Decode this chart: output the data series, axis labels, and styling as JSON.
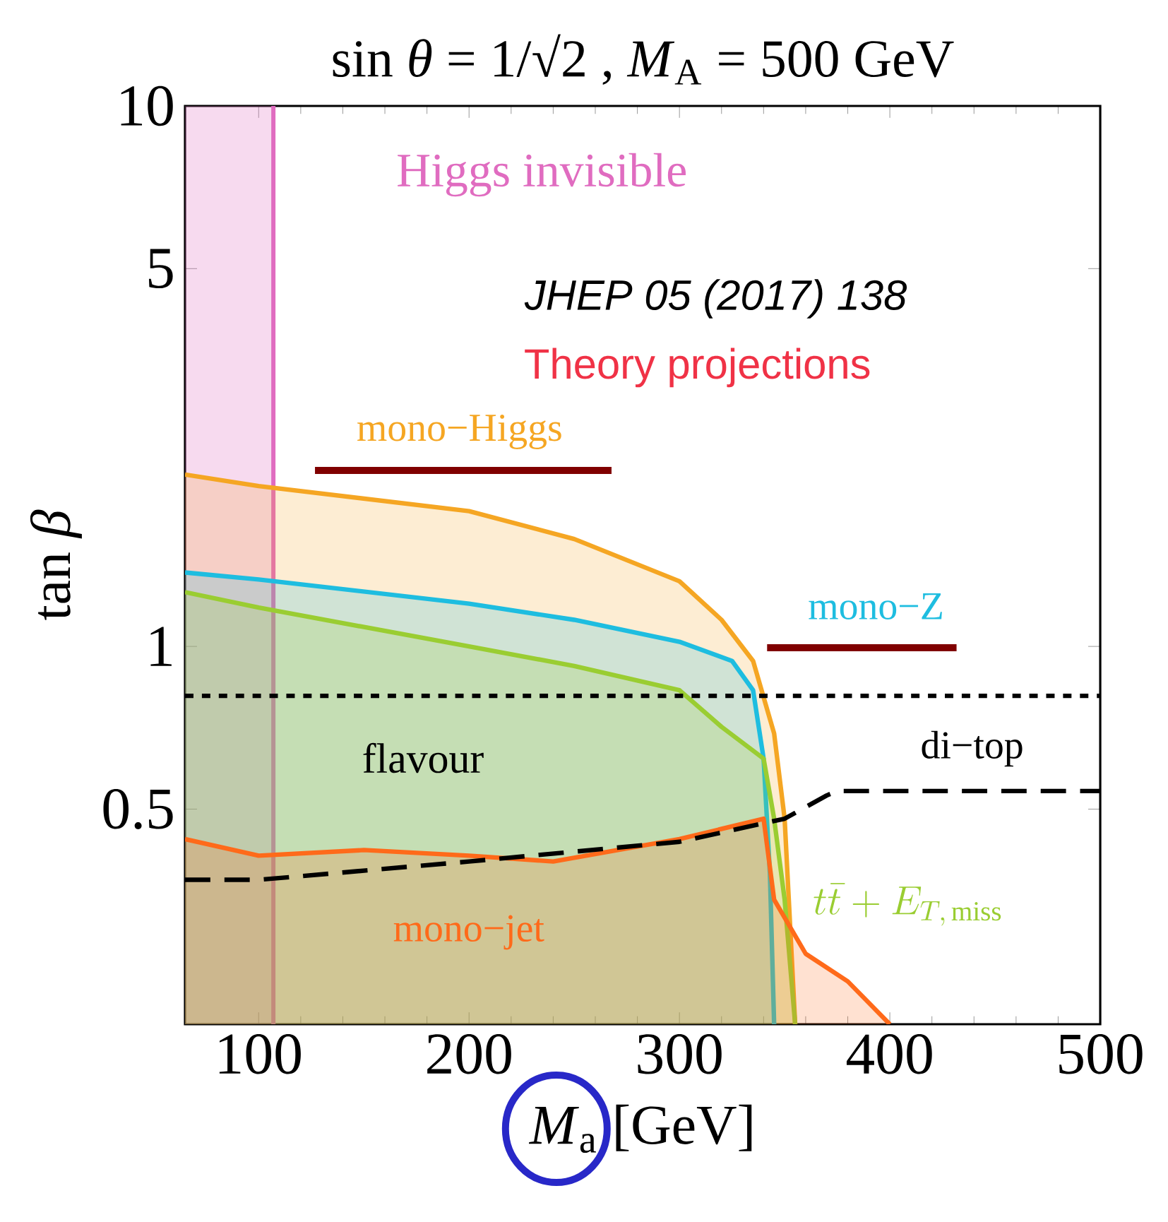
{
  "chart_data": {
    "type": "area",
    "title": "sin *θ* = 1/√2 , *M*$_{A}$ = 500 GeV",
    "xlabel": "*M*$_{a}$ [GeV]",
    "ylabel": "tan *β*",
    "log": "y",
    "grid": false,
    "xlim": [
      65,
      500
    ],
    "xticks": [
      100,
      200,
      300,
      400,
      500
    ],
    "ylim": [
      0.2,
      10
    ],
    "yticks": [
      0.5,
      1,
      5,
      10
    ],
    "series": [
      {
        "name": "mono−Higgs",
        "color": "#f5a623",
        "x": [
          65,
          100,
          200,
          250,
          300,
          320,
          335,
          345,
          350,
          355
        ],
        "values": [
          2.08,
          1.98,
          1.78,
          1.58,
          1.32,
          1.12,
          0.94,
          0.69,
          0.48,
          0.2
        ]
      },
      {
        "name": "mono−Z",
        "color": "#1ebde0",
        "x": [
          65,
          100,
          200,
          250,
          300,
          325,
          335,
          340,
          343,
          345
        ],
        "values": [
          1.37,
          1.33,
          1.2,
          1.12,
          1.02,
          0.94,
          0.83,
          0.62,
          0.38,
          0.2
        ]
      },
      {
        "name": "t\\bar{t} + E_{T,\\,\\mathrm{miss}}",
        "color": "#9acd32",
        "x": [
          65,
          100,
          200,
          250,
          300,
          320,
          340,
          345,
          350,
          355
        ],
        "values": [
          1.26,
          1.18,
          1.0,
          0.92,
          0.83,
          0.71,
          0.62,
          0.48,
          0.34,
          0.2
        ]
      },
      {
        "name": "mono−jet",
        "color": "#ff6a1a",
        "x": [
          65,
          100,
          150,
          200,
          240,
          300,
          340,
          345,
          360,
          380,
          400
        ],
        "values": [
          0.44,
          0.41,
          0.42,
          0.41,
          0.4,
          0.44,
          0.48,
          0.34,
          0.27,
          0.24,
          0.2
        ]
      },
      {
        "name": "di−top",
        "type": "line",
        "line_style": "dashed",
        "color": "#000000",
        "x": [
          65,
          100,
          200,
          300,
          350,
          370,
          375,
          500
        ],
        "values": [
          0.37,
          0.37,
          0.4,
          0.435,
          0.48,
          0.53,
          0.54,
          0.54
        ]
      }
    ],
    "ref_lines": [
      {
        "axis": "y",
        "value": 0.81,
        "label": "flavour",
        "color": "#000000",
        "line_style": "dotted"
      }
    ],
    "bands": [
      {
        "axis": "x",
        "from": 65,
        "to": 107,
        "label": "Higgs invisible",
        "color": "#e06cc0"
      }
    ],
    "annotations": [
      "JHEP 05 (2017) 138",
      "Theory projections"
    ]
  }
}
